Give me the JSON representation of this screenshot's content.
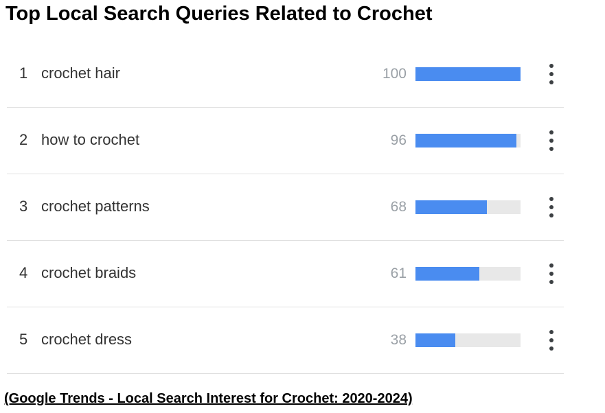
{
  "title": "Top Local Search Queries Related to Crochet",
  "caption": "(Google Trends - Local Search Interest for Crochet: 2020-2024)",
  "colors": {
    "bar": "#4a8cf0",
    "track": "#e8e8e8",
    "value_text": "#9aa0a6"
  },
  "icons": {
    "row_menu": "more-vert-icon"
  },
  "chart_data": {
    "type": "bar",
    "orientation": "horizontal",
    "title": "Top Local Search Queries Related to Crochet",
    "ylim": [
      0,
      100
    ],
    "rows": [
      {
        "rank": "1",
        "query": "crochet hair",
        "value": 100
      },
      {
        "rank": "2",
        "query": "how to crochet",
        "value": 96
      },
      {
        "rank": "3",
        "query": "crochet patterns",
        "value": 68
      },
      {
        "rank": "4",
        "query": "crochet braids",
        "value": 61
      },
      {
        "rank": "5",
        "query": "crochet dress",
        "value": 38
      }
    ]
  }
}
